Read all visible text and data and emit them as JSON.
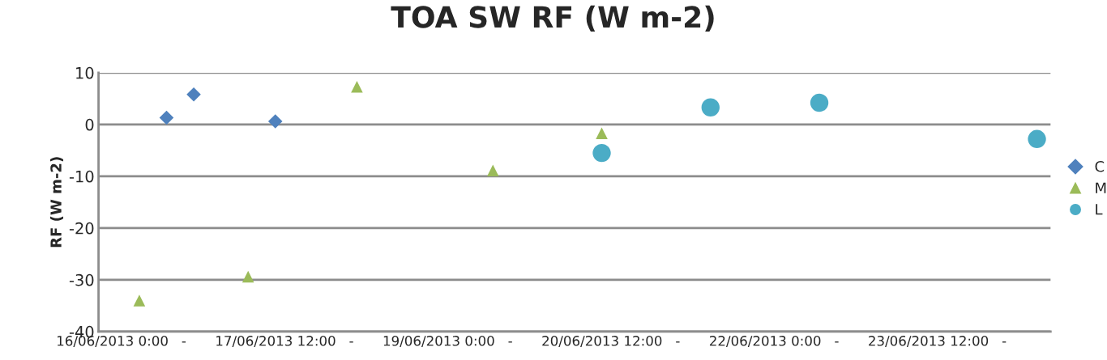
{
  "chart_data": {
    "type": "scatter",
    "title": "TOA SW RF (W m-2)",
    "ylabel": "RF (W m-2)",
    "xlim": [
      "2013-06-15T19:00",
      "2013-06-24T13:00"
    ],
    "xticks": [
      {
        "value": "2013-06-16T00:00",
        "label": "16/06/2013 0:00   -"
      },
      {
        "value": "2013-06-17T12:00",
        "label": "17/06/2013 12:00   -"
      },
      {
        "value": "2013-06-19T00:00",
        "label": "19/06/2013 0:00   -"
      },
      {
        "value": "2013-06-20T12:00",
        "label": "20/06/2013 12:00   -"
      },
      {
        "value": "2013-06-22T00:00",
        "label": "22/06/2013 0:00   -"
      },
      {
        "value": "2013-06-23T12:00",
        "label": "23/06/2013 12:00   -"
      }
    ],
    "ylim": [
      -40,
      10
    ],
    "yticks": [
      -40,
      -30,
      -20,
      -10,
      0,
      10
    ],
    "grid": "y",
    "legend": "right",
    "series": [
      {
        "name": "C",
        "color": "#4f81bd",
        "marker": "diamond",
        "x": [
          "2013-06-16T10:00",
          "2013-06-16T16:00",
          "2013-06-17T10:00"
        ],
        "values": [
          1.3,
          5.8,
          0.6
        ]
      },
      {
        "name": "M",
        "color": "#9bbb59",
        "marker": "triangle",
        "x": [
          "2013-06-16T04:00",
          "2013-06-17T04:00",
          "2013-06-18T04:00",
          "2013-06-19T10:00",
          "2013-06-20T10:00"
        ],
        "values": [
          -34,
          -29.4,
          7.3,
          -8.9,
          -1.7
        ]
      },
      {
        "name": "L",
        "color": "#4bacc6",
        "marker": "circle",
        "x": [
          "2013-06-20T10:00",
          "2013-06-21T10:00",
          "2013-06-22T10:00",
          "2013-06-24T10:00"
        ],
        "values": [
          -5.5,
          3.3,
          4.2,
          -2.8
        ]
      }
    ]
  }
}
